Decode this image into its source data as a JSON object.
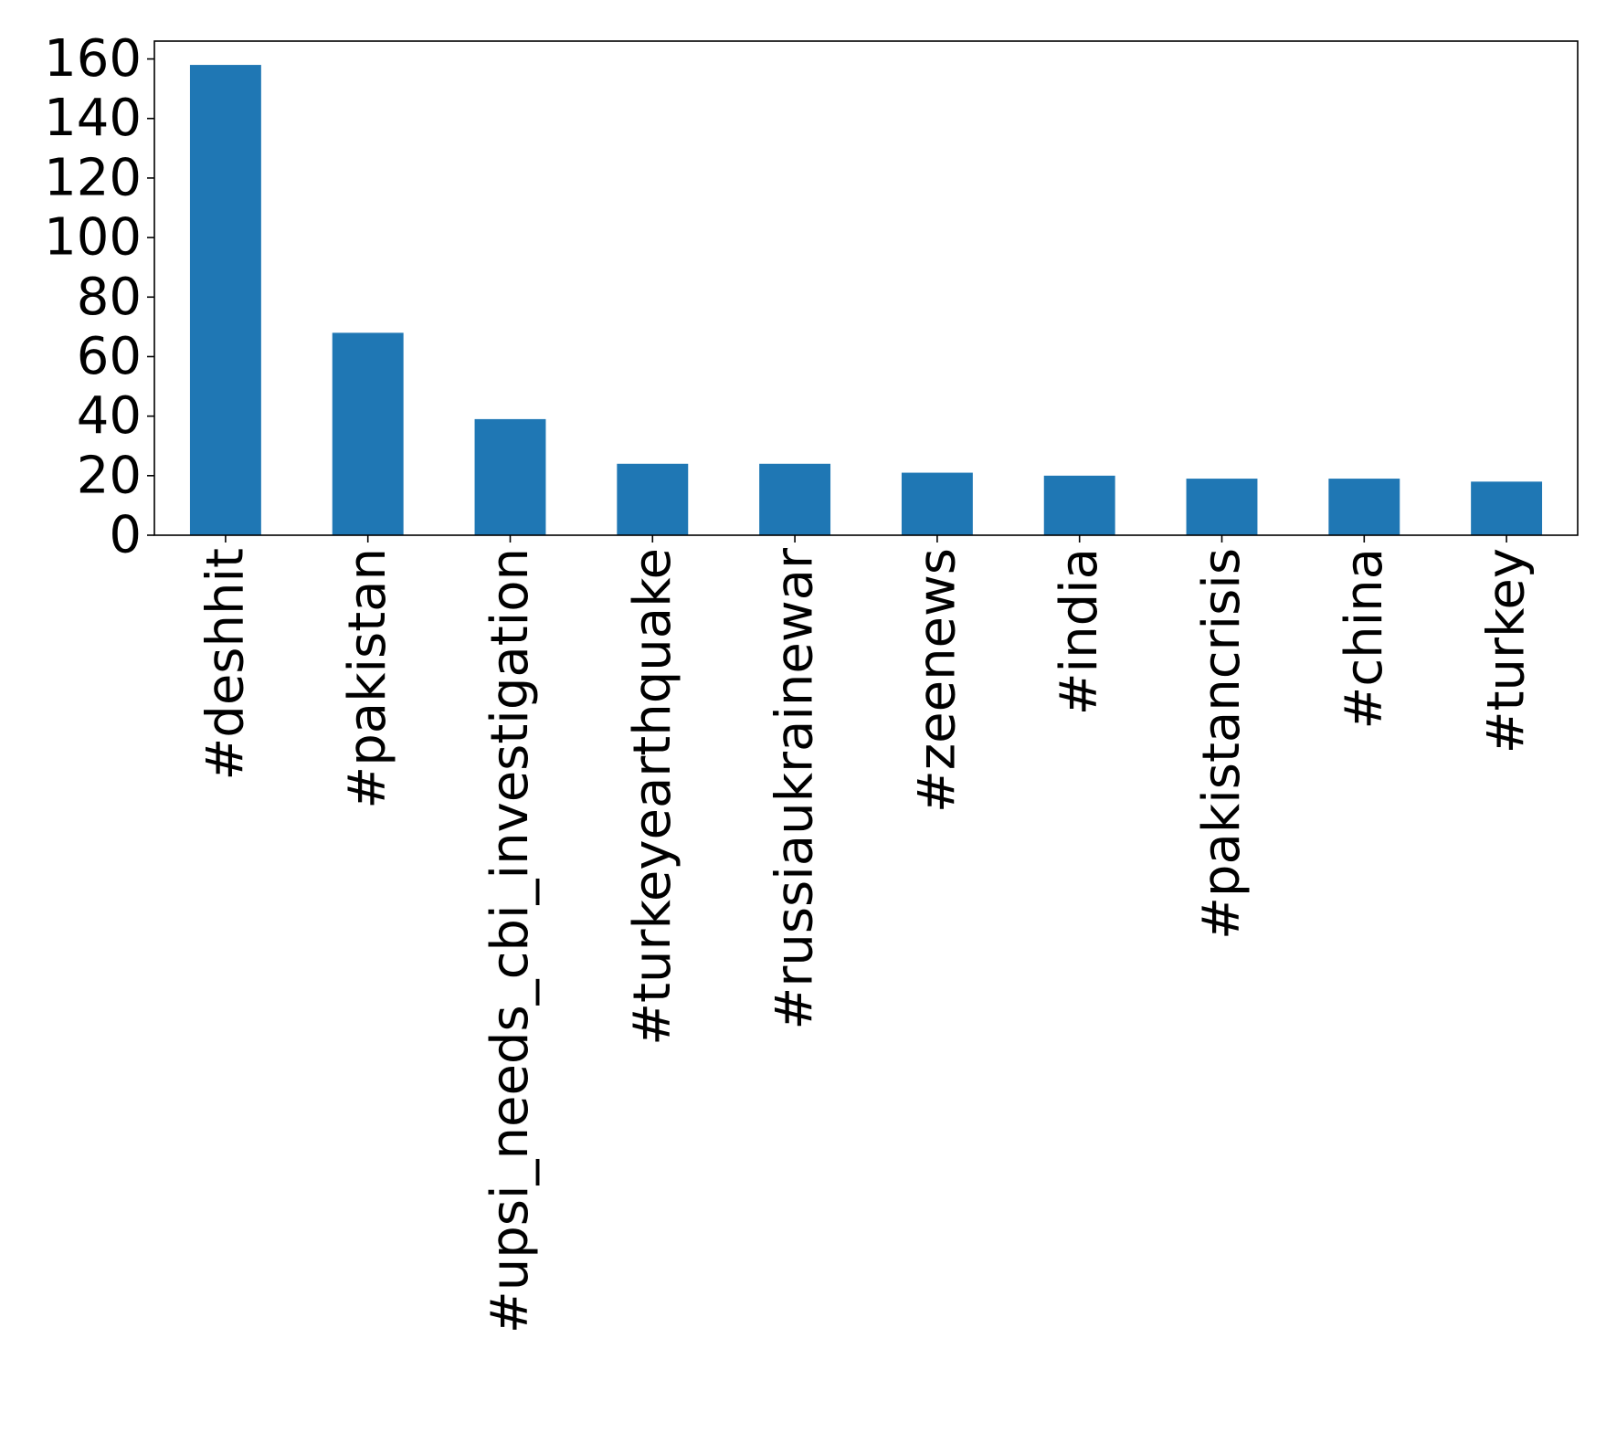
{
  "chart_data": {
    "type": "bar",
    "title": "",
    "xlabel": "",
    "ylabel": "",
    "categories": [
      "#deshhit",
      "#pakistan",
      "#upsi_needs_cbi_investigation",
      "#turkeyearthquake",
      "#russiaukrainewar",
      "#zeenews",
      "#india",
      "#pakistancrisis",
      "#china",
      "#turkey"
    ],
    "values": [
      158,
      68,
      39,
      24,
      24,
      21,
      20,
      19,
      19,
      18
    ],
    "ylim": [
      0,
      166
    ],
    "yticks": [
      0,
      20,
      40,
      60,
      80,
      100,
      120,
      140,
      160
    ],
    "grid": false,
    "legend": "none",
    "bar_color": "#1f77b4"
  }
}
